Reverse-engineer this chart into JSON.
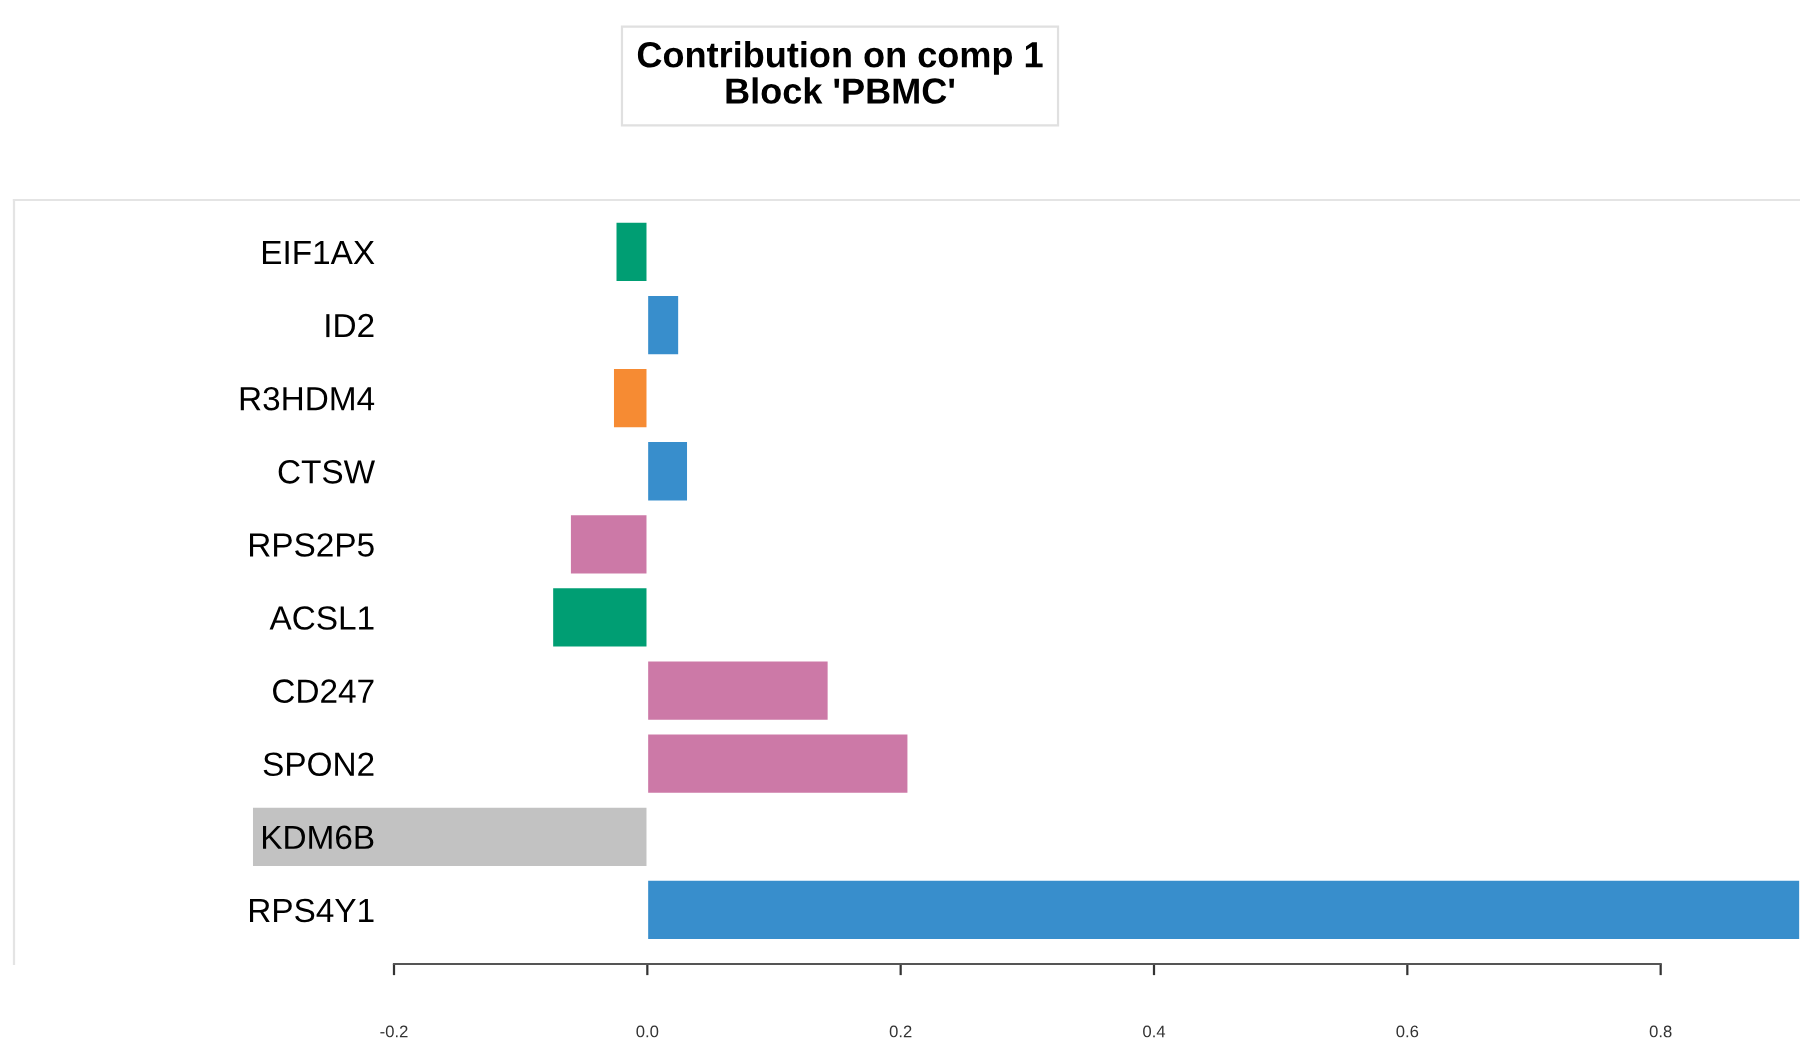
{
  "chart_data": {
    "type": "bar",
    "orientation": "horizontal",
    "title": "Contribution on comp 1\nBlock 'PBMC'",
    "categories": [
      "EIF1AX",
      "ID2",
      "R3HDM4",
      "CTSW",
      "RPS2P5",
      "ACSL1",
      "CD247",
      "SPON2",
      "KDM6B",
      "RPS4Y1"
    ],
    "values": [
      -0.025,
      0.025,
      -0.027,
      0.032,
      -0.061,
      -0.075,
      0.143,
      0.206,
      -0.312,
      0.91
    ],
    "colors": [
      "#009e73",
      "#388ecc",
      "#f68b33",
      "#388ecc",
      "#cc79a7",
      "#009e73",
      "#cc79a7",
      "#cc79a7",
      "#c2c2c2",
      "#388ecc"
    ],
    "xlim": [
      -0.5,
      0.91
    ],
    "xticks": [
      -0.2,
      {
        "value": 0,
        "label": "0.0"
      },
      0.2,
      0.4,
      0.6,
      0.8
    ]
  }
}
